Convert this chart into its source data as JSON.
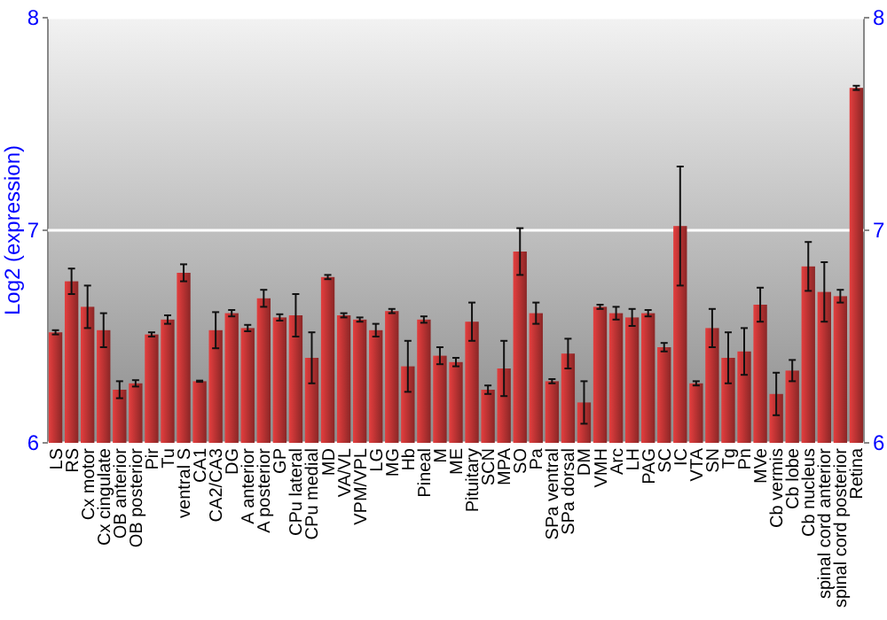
{
  "chart_data": {
    "type": "bar",
    "ylabel": "Log2 (expression)",
    "categories": [
      "LS",
      "RS",
      "Cx motor",
      "Cx cingulate",
      "OB anterior",
      "OB posterior",
      "Pir",
      "Tu",
      "ventral S",
      "CA1",
      "CA2/CA3",
      "DG",
      "A anterior",
      "A posterior",
      "GP",
      "CPu lateral",
      "CPu medial",
      "MD",
      "VA/VL",
      "VPM/VPL",
      "LG",
      "MG",
      "Hb",
      "Pineal",
      "M",
      "ME",
      "Pituitary",
      "SCN",
      "MPA",
      "SO",
      "Pa",
      "SPa ventral",
      "SPa dorsal",
      "DM",
      "VMH",
      "Arc",
      "LH",
      "PAG",
      "SC",
      "IC",
      "VTA",
      "SN",
      "Tg",
      "Pn",
      "MVe",
      "Cb vermis",
      "Cb lobe",
      "Cb nucleus",
      "spinal cord anterior",
      "spinal cord posterior",
      "Retina"
    ],
    "values": [
      6.52,
      6.76,
      6.64,
      6.53,
      6.25,
      6.28,
      6.51,
      6.58,
      6.8,
      6.29,
      6.53,
      6.61,
      6.54,
      6.68,
      6.59,
      6.6,
      6.4,
      6.78,
      6.6,
      6.58,
      6.53,
      6.62,
      6.36,
      6.58,
      6.41,
      6.38,
      6.57,
      6.25,
      6.35,
      6.9,
      6.61,
      6.29,
      6.42,
      6.19,
      6.64,
      6.61,
      6.59,
      6.61,
      6.45,
      7.02,
      6.28,
      6.54,
      6.4,
      6.43,
      6.65,
      6.23,
      6.34,
      6.83,
      6.71,
      6.69,
      7.67
    ],
    "errors": [
      0.01,
      0.06,
      0.1,
      0.08,
      0.04,
      0.015,
      0.01,
      0.02,
      0.04,
      0.003,
      0.085,
      0.015,
      0.015,
      0.04,
      0.015,
      0.1,
      0.12,
      0.01,
      0.01,
      0.01,
      0.03,
      0.01,
      0.12,
      0.015,
      0.04,
      0.02,
      0.09,
      0.02,
      0.13,
      0.11,
      0.05,
      0.01,
      0.07,
      0.1,
      0.01,
      0.03,
      0.04,
      0.015,
      0.02,
      0.28,
      0.01,
      0.09,
      0.12,
      0.11,
      0.08,
      0.1,
      0.05,
      0.115,
      0.14,
      0.03,
      0.01
    ],
    "color": "#b83232",
    "ylim": [
      6,
      8
    ],
    "yticks": [
      6,
      7,
      8
    ],
    "y2lim": [
      6,
      8
    ],
    "y2ticks": [
      6,
      7,
      8
    ],
    "grid": "y"
  }
}
